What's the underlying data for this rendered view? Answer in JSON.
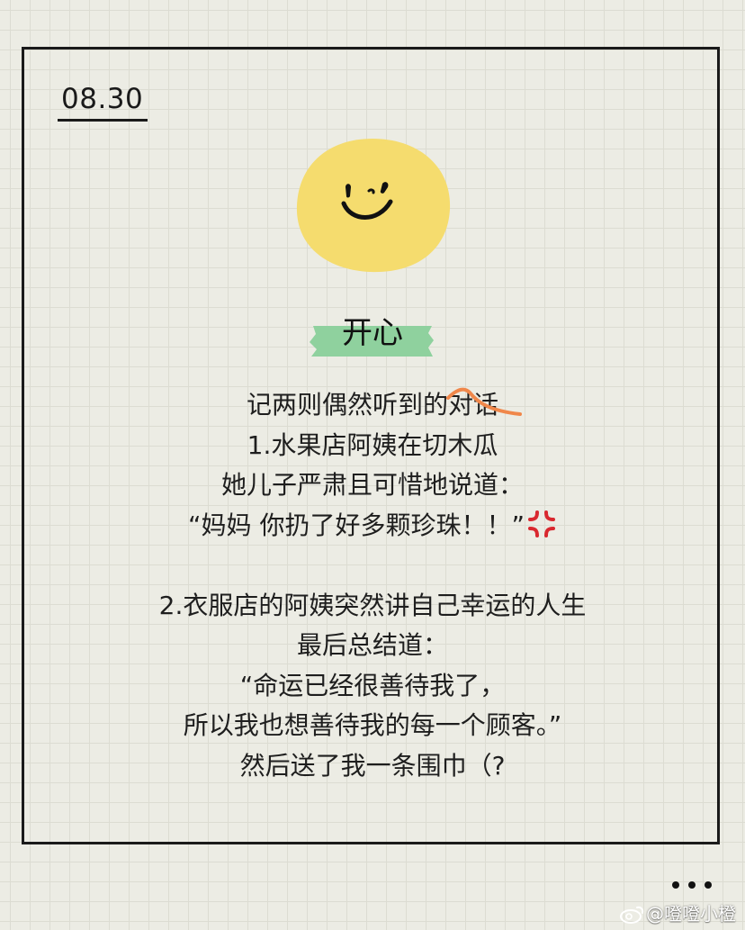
{
  "date": "08.30",
  "title": "开心",
  "lines": {
    "l1_prefix": "记两则偶然听到的",
    "l1_struck": "对话",
    "l2": "1.水果店阿姨在切木瓜",
    "l3": "她儿子严肃且可惜地说道：",
    "l4": "“妈妈 你扔了好多颗珍珠！！”",
    "l5": "2.衣服店的阿姨突然讲自己幸运的人生",
    "l6": "最后总结道：",
    "l7": "“命运已经很善待我了，",
    "l8": "所以我也想善待我的每一个顾客。”",
    "l9": "然后送了我一条围巾（?"
  },
  "icons": {
    "smiley": "smiley-face-icon",
    "anger": "anger-symbol-icon",
    "more": "more-dots-icon",
    "weibo": "weibo-logo-icon"
  },
  "watermark": "@噔噔小橙",
  "colors": {
    "smiley_fill": "#f5dc6e",
    "tape_fill": "#8fd19e",
    "strike": "#f0874a",
    "anger": "#d9282f"
  }
}
